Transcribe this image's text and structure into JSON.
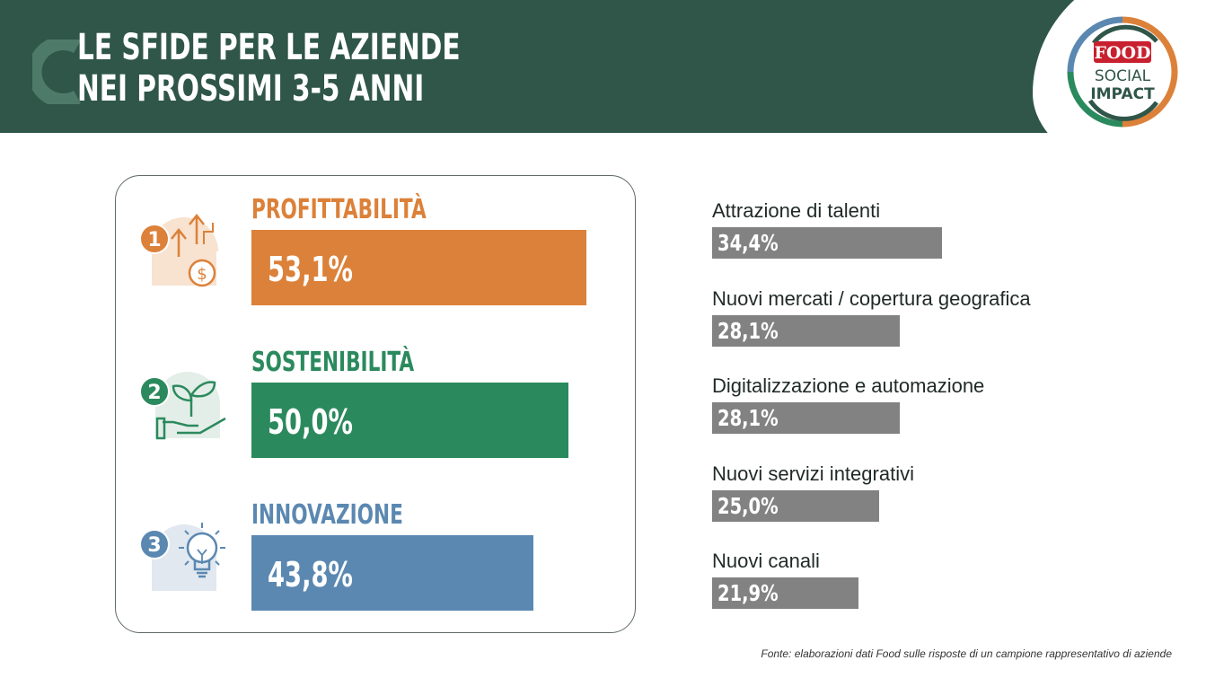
{
  "header": {
    "title_line1": "LE SFIDE PER LE AZIENDE",
    "title_line2": "NEI PROSSIMI 3-5 ANNI",
    "logo": {
      "brand": "FOOD",
      "line1": "SOCIAL",
      "line2": "IMPACT"
    }
  },
  "colors": {
    "header_bg": "#2f5649",
    "orange": "#dc8139",
    "green": "#2b8a5d",
    "blue": "#5b88b1",
    "gray_bar": "#828282"
  },
  "chart_data": [
    {
      "type": "bar",
      "orientation": "horizontal",
      "xlim": [
        0,
        60
      ],
      "categories": [
        "PROFITTABILITÀ",
        "SOSTENIBILITÀ",
        "INNOVAZIONE"
      ],
      "ranks": [
        "1",
        "2",
        "3"
      ],
      "values": [
        53.1,
        50.0,
        43.8
      ],
      "value_labels": [
        "53,1%",
        "50,0%",
        "43,8%"
      ],
      "colors": [
        "#dc8139",
        "#2b8a5d",
        "#5b88b1"
      ],
      "icons": [
        "money-growth-icon",
        "plant-hand-icon",
        "lightbulb-icon"
      ]
    },
    {
      "type": "bar",
      "orientation": "horizontal",
      "xlim": [
        0,
        60
      ],
      "categories": [
        "Attrazione di talenti",
        "Nuovi mercati / copertura geografica",
        "Digitalizzazione e automazione",
        "Nuovi servizi integrativi",
        "Nuovi canali"
      ],
      "values": [
        34.4,
        28.1,
        28.1,
        25.0,
        21.9
      ],
      "value_labels": [
        "34,4%",
        "28,1%",
        "28,1%",
        "25,0%",
        "21,9%"
      ]
    }
  ],
  "source": "Fonte: elaborazioni dati Food sulle risposte di un campione rappresentativo di aziende"
}
